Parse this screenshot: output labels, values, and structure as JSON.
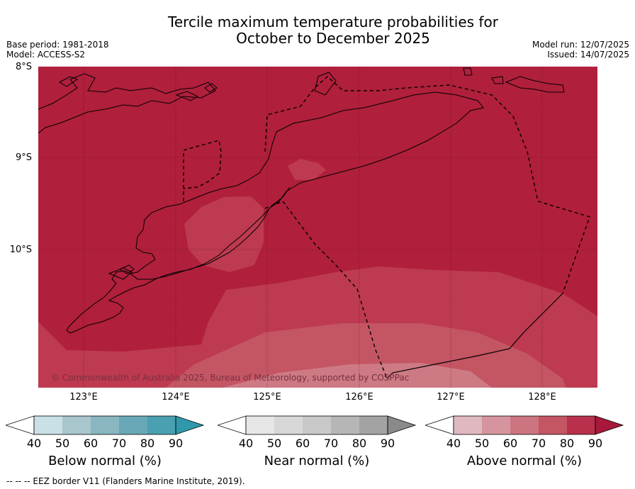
{
  "title": {
    "line1": "Tercile maximum temperature probabilities for",
    "line2": "October to December 2025"
  },
  "meta": {
    "base_period": "Base period: 1981-2018",
    "model": "Model: ACCESS-S2",
    "model_run": "Model run: 12/07/2025",
    "issued": "Issued: 14/07/2025"
  },
  "map": {
    "lat_labels": [
      "8°S",
      "9°S",
      "10°S"
    ],
    "lon_labels": [
      "123°E",
      "124°E",
      "125°E",
      "126°E",
      "127°E",
      "128°E"
    ],
    "copyright": "© Commonwealth of Australia 2025, Bureau of Meteorology, supported by COSPPac",
    "dominant_category": "Above normal",
    "dominant_probability_band": "80-90",
    "colors": {
      "above_80_90": "#b01f3c",
      "above_70_80": "#bd3a50",
      "above_60_70": "#c45563",
      "above_50_60": "#cd7a84",
      "land_outline": "#000000",
      "eez_border": "#000000"
    }
  },
  "colorbars": [
    {
      "label": "Below normal (%)",
      "ticks": [
        "40",
        "50",
        "60",
        "70",
        "80",
        "90"
      ],
      "colors": [
        "#c8e0e6",
        "#a8c6cc",
        "#89b6c0",
        "#68a8b6",
        "#4aa0b0",
        "#2f98ac"
      ]
    },
    {
      "label": "Near normal (%)",
      "ticks": [
        "40",
        "50",
        "60",
        "70",
        "80",
        "90"
      ],
      "colors": [
        "#e6e6e6",
        "#d7d7d7",
        "#c8c8c8",
        "#b6b6b6",
        "#a3a3a3",
        "#8a8a8a"
      ]
    },
    {
      "label": "Above normal (%)",
      "ticks": [
        "40",
        "50",
        "60",
        "70",
        "80",
        "90"
      ],
      "colors": [
        "#e0b8c0",
        "#d6959e",
        "#cc7480",
        "#c45563",
        "#b8304b",
        "#a8183a"
      ]
    }
  ],
  "footer": "--  --  -- EEZ border V11 (Flanders Marine Institute, 2019)."
}
